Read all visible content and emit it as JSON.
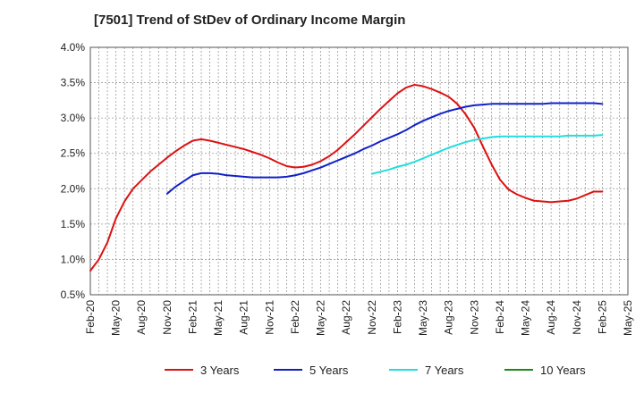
{
  "chart_data": {
    "type": "line",
    "title": "[7501]  Trend of StDev of Ordinary Income Margin",
    "xlabel": "",
    "ylabel": "",
    "ylim": [
      0.5,
      4.0
    ],
    "yticks": [
      0.5,
      1.0,
      1.5,
      2.0,
      2.5,
      3.0,
      3.5,
      4.0
    ],
    "ytick_labels": [
      "0.5%",
      "1.0%",
      "1.5%",
      "2.0%",
      "2.5%",
      "3.0%",
      "3.5%",
      "4.0%"
    ],
    "xticks": [
      "Feb-20",
      "May-20",
      "Aug-20",
      "Nov-20",
      "Feb-21",
      "May-21",
      "Aug-21",
      "Nov-21",
      "Feb-22",
      "May-22",
      "Aug-22",
      "Nov-22",
      "Feb-23",
      "May-23",
      "Aug-23",
      "Nov-23",
      "Feb-24",
      "May-24",
      "Aug-24",
      "Nov-24",
      "Feb-25",
      "May-25"
    ],
    "grid": true,
    "legend_position": "bottom",
    "series": [
      {
        "name": "3 Years",
        "color": "#dd1111",
        "x": [
          "2020-02",
          "2020-03",
          "2020-04",
          "2020-05",
          "2020-06",
          "2020-07",
          "2020-08",
          "2020-09",
          "2020-10",
          "2020-11",
          "2020-12",
          "2021-01",
          "2021-02",
          "2021-03",
          "2021-04",
          "2021-05",
          "2021-06",
          "2021-07",
          "2021-08",
          "2021-09",
          "2021-10",
          "2021-11",
          "2021-12",
          "2022-01",
          "2022-02",
          "2022-03",
          "2022-04",
          "2022-05",
          "2022-06",
          "2022-07",
          "2022-08",
          "2022-09",
          "2022-10",
          "2022-11",
          "2022-12",
          "2023-01",
          "2023-02",
          "2023-03",
          "2023-04",
          "2023-05",
          "2023-06",
          "2023-07",
          "2023-08",
          "2023-09",
          "2023-10",
          "2023-11",
          "2023-12",
          "2024-01",
          "2024-02",
          "2024-03",
          "2024-04",
          "2024-05",
          "2024-06",
          "2024-07",
          "2024-08",
          "2024-09",
          "2024-10",
          "2024-11",
          "2024-12",
          "2025-01",
          "2025-02"
        ],
        "values": [
          0.84,
          1.0,
          1.24,
          1.58,
          1.82,
          2.0,
          2.12,
          2.24,
          2.34,
          2.44,
          2.53,
          2.61,
          2.68,
          2.7,
          2.68,
          2.65,
          2.62,
          2.59,
          2.56,
          2.52,
          2.48,
          2.43,
          2.37,
          2.32,
          2.3,
          2.31,
          2.34,
          2.39,
          2.46,
          2.55,
          2.66,
          2.77,
          2.89,
          3.01,
          3.13,
          3.24,
          3.35,
          3.43,
          3.47,
          3.45,
          3.41,
          3.36,
          3.3,
          3.2,
          3.05,
          2.86,
          2.6,
          2.35,
          2.13,
          1.99,
          1.92,
          1.87,
          1.83,
          1.82,
          1.81,
          1.82,
          1.83,
          1.86,
          1.91,
          1.96,
          1.96
        ]
      },
      {
        "name": "5 Years",
        "color": "#1020c8",
        "x": [
          "2020-11",
          "2020-12",
          "2021-01",
          "2021-02",
          "2021-03",
          "2021-04",
          "2021-05",
          "2021-06",
          "2021-07",
          "2021-08",
          "2021-09",
          "2021-10",
          "2021-11",
          "2021-12",
          "2022-01",
          "2022-02",
          "2022-03",
          "2022-04",
          "2022-05",
          "2022-06",
          "2022-07",
          "2022-08",
          "2022-09",
          "2022-10",
          "2022-11",
          "2022-12",
          "2023-01",
          "2023-02",
          "2023-03",
          "2023-04",
          "2023-05",
          "2023-06",
          "2023-07",
          "2023-08",
          "2023-09",
          "2023-10",
          "2023-11",
          "2023-12",
          "2024-01",
          "2024-02",
          "2024-03",
          "2024-04",
          "2024-05",
          "2024-06",
          "2024-07",
          "2024-08",
          "2024-09",
          "2024-10",
          "2024-11",
          "2024-12",
          "2025-01",
          "2025-02"
        ],
        "values": [
          1.93,
          2.03,
          2.11,
          2.19,
          2.22,
          2.22,
          2.21,
          2.19,
          2.18,
          2.17,
          2.16,
          2.16,
          2.16,
          2.16,
          2.17,
          2.19,
          2.22,
          2.26,
          2.3,
          2.35,
          2.4,
          2.45,
          2.5,
          2.56,
          2.61,
          2.67,
          2.72,
          2.77,
          2.83,
          2.9,
          2.96,
          3.01,
          3.06,
          3.1,
          3.13,
          3.16,
          3.18,
          3.19,
          3.2,
          3.2,
          3.2,
          3.2,
          3.2,
          3.2,
          3.2,
          3.21,
          3.21,
          3.21,
          3.21,
          3.21,
          3.21,
          3.2
        ]
      },
      {
        "name": "7 Years",
        "color": "#22dddd",
        "x": [
          "2022-11",
          "2022-12",
          "2023-01",
          "2023-02",
          "2023-03",
          "2023-04",
          "2023-05",
          "2023-06",
          "2023-07",
          "2023-08",
          "2023-09",
          "2023-10",
          "2023-11",
          "2023-12",
          "2024-01",
          "2024-02",
          "2024-03",
          "2024-04",
          "2024-05",
          "2024-06",
          "2024-07",
          "2024-08",
          "2024-09",
          "2024-10",
          "2024-11",
          "2024-12",
          "2025-01",
          "2025-02"
        ],
        "values": [
          2.21,
          2.24,
          2.27,
          2.31,
          2.34,
          2.38,
          2.43,
          2.48,
          2.53,
          2.58,
          2.62,
          2.66,
          2.69,
          2.71,
          2.73,
          2.74,
          2.74,
          2.74,
          2.74,
          2.74,
          2.74,
          2.74,
          2.74,
          2.75,
          2.75,
          2.75,
          2.75,
          2.76
        ]
      },
      {
        "name": "10 Years",
        "color": "#1a8a1a",
        "x": [],
        "values": []
      }
    ]
  }
}
